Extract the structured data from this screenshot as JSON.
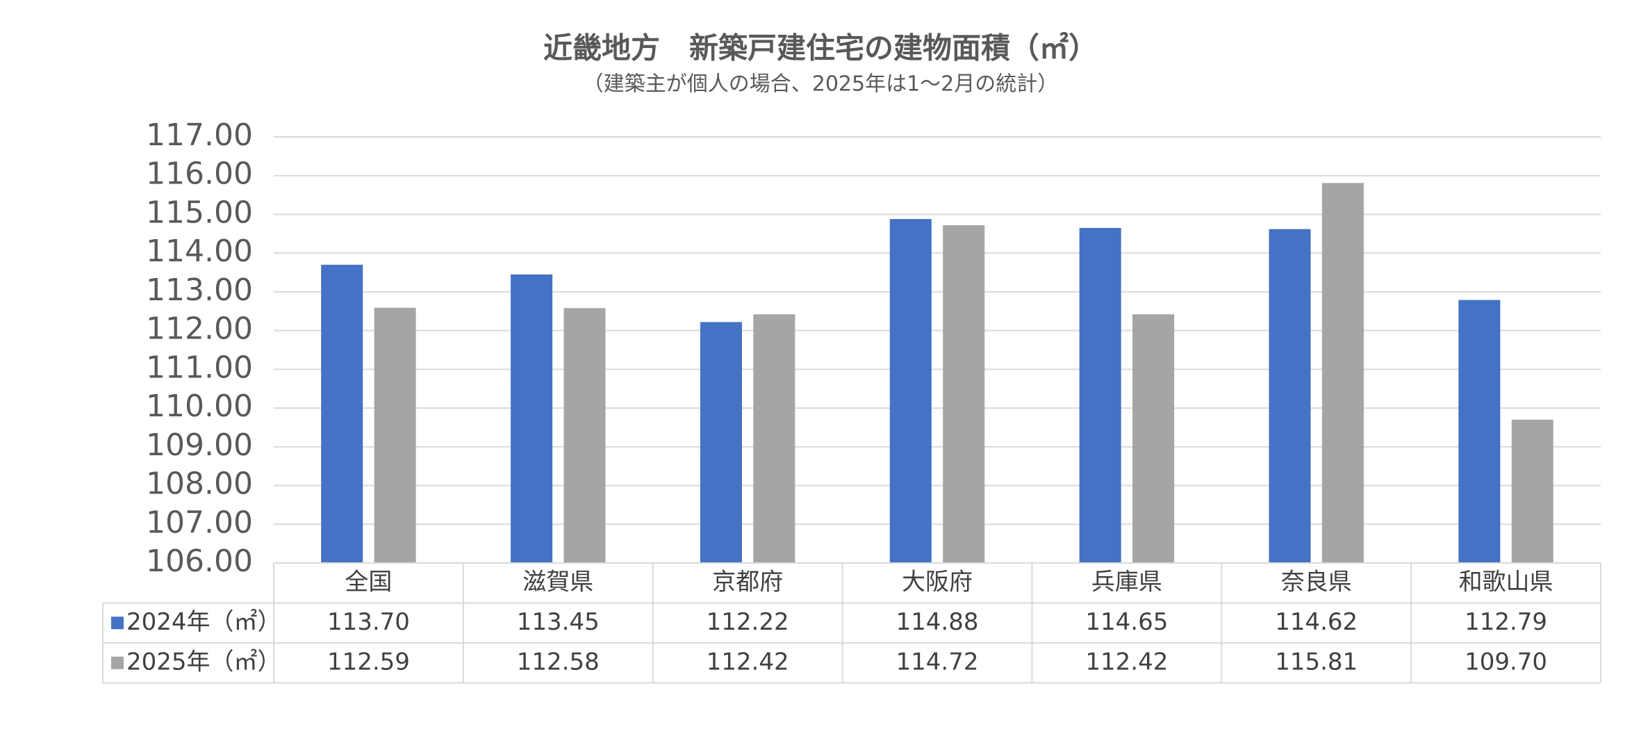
{
  "chart_data": {
    "type": "bar",
    "title": "近畿地方　新築戸建住宅の建物面積（㎡）",
    "subtitle": "（建築主が個人の場合、2025年は1～2月の統計）",
    "categories": [
      "全国",
      "滋賀県",
      "京都府",
      "大阪府",
      "兵庫県",
      "奈良県",
      "和歌山県"
    ],
    "series": [
      {
        "name": "2024年（㎡）",
        "color": "#4472c4",
        "values": [
          113.7,
          113.45,
          112.22,
          114.88,
          114.65,
          114.62,
          112.79
        ],
        "value_labels": [
          "113.70",
          "113.45",
          "112.22",
          "114.88",
          "114.65",
          "114.62",
          "112.79"
        ]
      },
      {
        "name": "2025年（㎡）",
        "color": "#a5a5a5",
        "values": [
          112.59,
          112.58,
          112.42,
          114.72,
          112.42,
          115.81,
          109.7
        ],
        "value_labels": [
          "112.59",
          "112.58",
          "112.42",
          "114.72",
          "112.42",
          "115.81",
          "109.70"
        ]
      }
    ],
    "ylim": [
      106,
      117
    ],
    "yticks": [
      {
        "value": 106,
        "label": "106.00"
      },
      {
        "value": 107,
        "label": "107.00"
      },
      {
        "value": 108,
        "label": "108.00"
      },
      {
        "value": 109,
        "label": "109.00"
      },
      {
        "value": 110,
        "label": "110.00"
      },
      {
        "value": 111,
        "label": "111.00"
      },
      {
        "value": 112,
        "label": "112.00"
      },
      {
        "value": 113,
        "label": "113.00"
      },
      {
        "value": 114,
        "label": "114.00"
      },
      {
        "value": 115,
        "label": "115.00"
      },
      {
        "value": 116,
        "label": "116.00"
      },
      {
        "value": 117,
        "label": "117.00"
      }
    ],
    "grid": true
  }
}
